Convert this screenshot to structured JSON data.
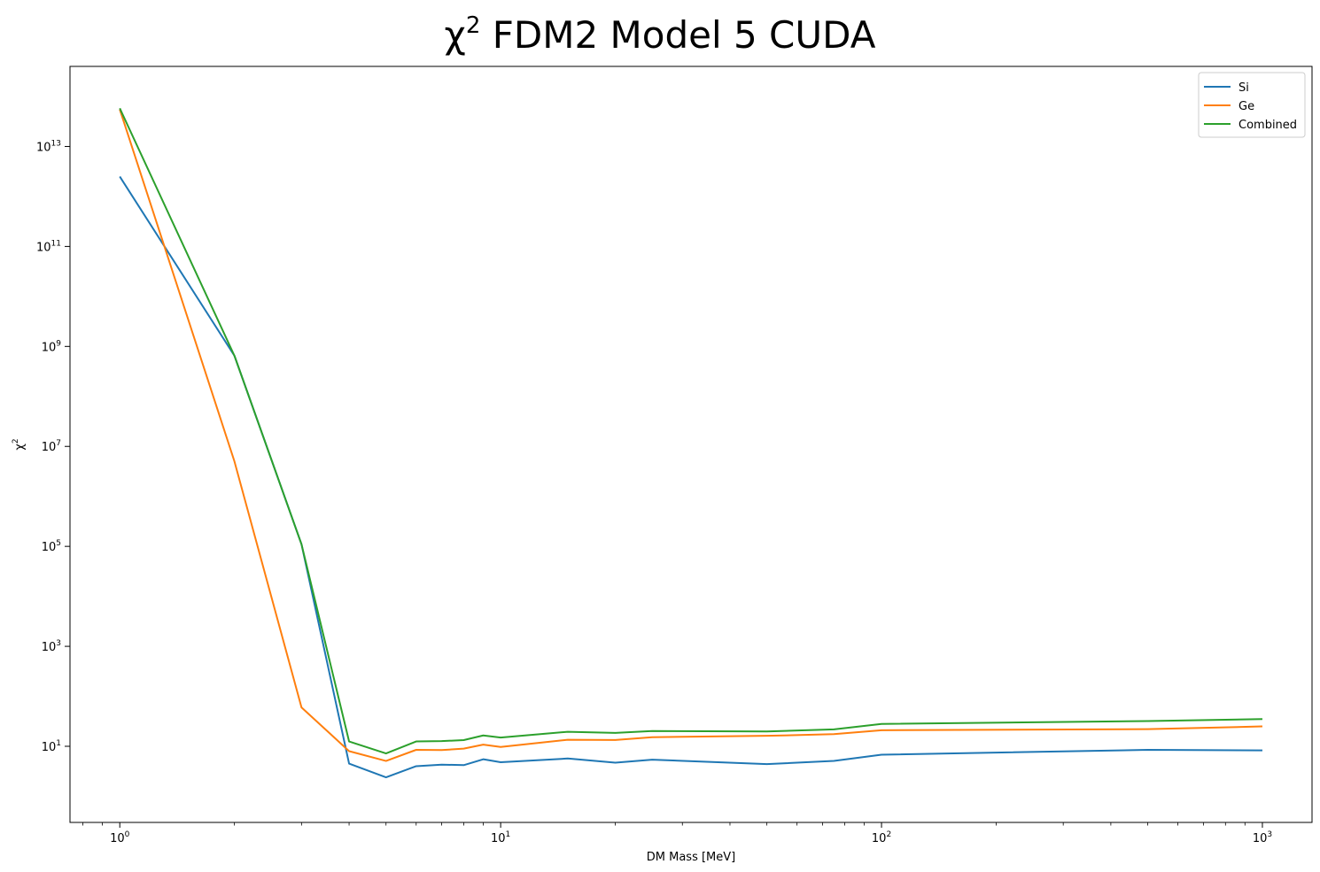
{
  "chart_data": {
    "type": "line",
    "title_base": "χ",
    "title_sup": "2",
    "title_rest": " FDM2 Model 5 CUDA",
    "xlabel": "DM Mass [MeV]",
    "ylabel_base": "χ",
    "ylabel_sup": "2",
    "x_scale": "log",
    "y_scale": "log",
    "xlim": [
      0.74,
      1350
    ],
    "ylim": [
      0.3,
      400000000000000
    ],
    "grid": false,
    "legend_position": "top-right",
    "x_ticks": [
      {
        "value": 1,
        "base": "10",
        "exp": "0"
      },
      {
        "value": 10,
        "base": "10",
        "exp": "1"
      },
      {
        "value": 100,
        "base": "10",
        "exp": "2"
      },
      {
        "value": 1000,
        "base": "10",
        "exp": "3"
      }
    ],
    "y_ticks": [
      {
        "value": 10,
        "base": "10",
        "exp": "1"
      },
      {
        "value": 1000,
        "base": "10",
        "exp": "3"
      },
      {
        "value": 100000,
        "base": "10",
        "exp": "5"
      },
      {
        "value": 10000000,
        "base": "10",
        "exp": "7"
      },
      {
        "value": 1000000000,
        "base": "10",
        "exp": "9"
      },
      {
        "value": 100000000000,
        "base": "10",
        "exp": "11"
      },
      {
        "value": 10000000000000,
        "base": "10",
        "exp": "13"
      }
    ],
    "x": [
      1,
      2,
      3,
      4,
      5,
      6,
      7,
      8,
      9,
      10,
      15,
      20,
      25,
      50,
      75,
      100,
      500,
      1000
    ],
    "series": [
      {
        "name": "Si",
        "color": "#1f77b4",
        "values": [
          2500000000000.0,
          650000000.0,
          110000.0,
          4.5,
          2.4,
          4.0,
          4.3,
          4.2,
          5.5,
          4.8,
          5.7,
          4.7,
          5.4,
          4.4,
          5.1,
          6.8,
          8.5,
          8.3
        ]
      },
      {
        "name": "Ge",
        "color": "#ff7f0e",
        "values": [
          55000000000000.0,
          5000000.0,
          60,
          8.0,
          5.1,
          8.5,
          8.4,
          9.0,
          10.8,
          9.7,
          13.5,
          13.4,
          15.2,
          16.2,
          17.5,
          21.0,
          22.0,
          25.0
        ]
      },
      {
        "name": "Combined",
        "color": "#2ca02c",
        "values": [
          58000000000000.0,
          650000000.0,
          110000.0,
          12.5,
          7.2,
          12.5,
          12.7,
          13.3,
          16.5,
          15.0,
          19.5,
          18.5,
          20.2,
          19.8,
          21.8,
          28.0,
          32.0,
          35.0
        ]
      }
    ]
  }
}
